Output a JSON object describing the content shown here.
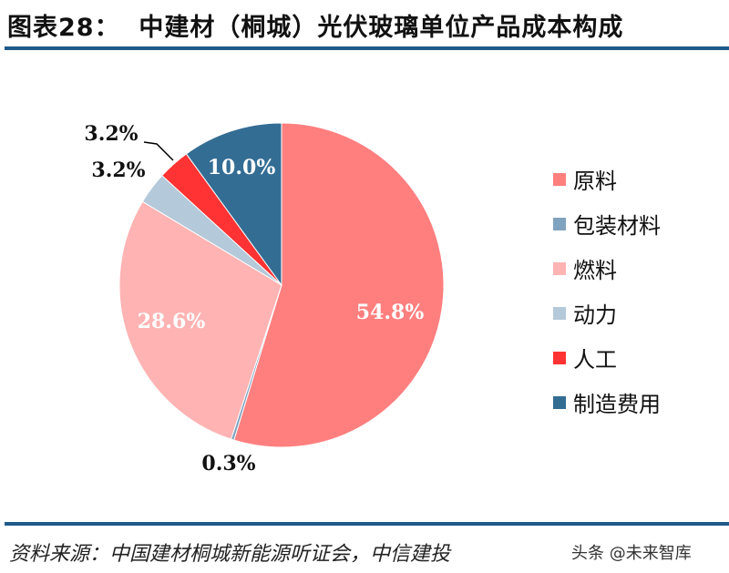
{
  "title": "图表28：  中建材（桐城）光伏玻璃单位产品成本构成",
  "source": "资料来源：中国建材桐城新能源听证会，中信建投",
  "watermark": "头条 @未来智库",
  "chart_data": {
    "type": "pie",
    "title": "中建材（桐城）光伏玻璃单位产品成本构成",
    "categories": [
      "原料",
      "包装材料",
      "燃料",
      "动力",
      "人工",
      "制造费用"
    ],
    "values": [
      54.8,
      0.3,
      28.6,
      3.2,
      3.2,
      10.0
    ],
    "labels": [
      "54.8%",
      "0.3%",
      "28.6%",
      "3.2%",
      "3.2%",
      "10.0%"
    ],
    "colors": [
      "#FF7F7F",
      "#7FA3BF",
      "#FFB3B3",
      "#B4C9D9",
      "#FF3333",
      "#336D94"
    ],
    "start": "12 o'clock",
    "direction": "clockwise",
    "legend_position": "right"
  }
}
